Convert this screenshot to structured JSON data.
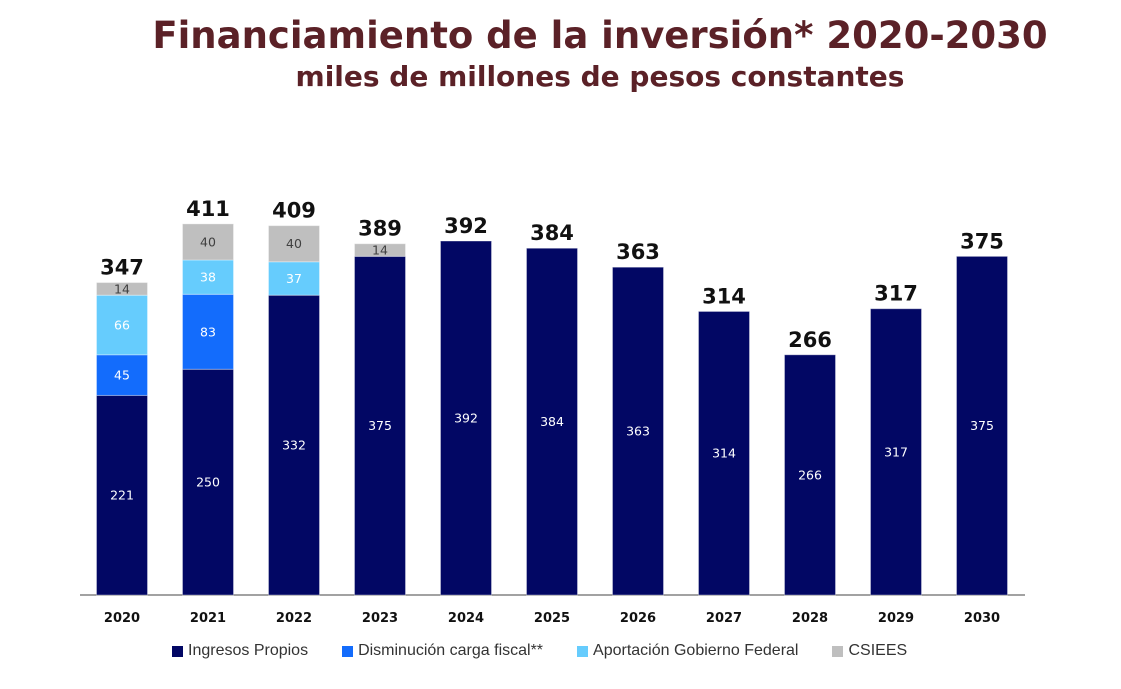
{
  "chart_data": {
    "type": "bar",
    "stacked": true,
    "title": "Financiamiento de la inversión* 2020-2030",
    "subtitle": "miles de millones de pesos constantes",
    "categories": [
      "2020",
      "2021",
      "2022",
      "2023",
      "2024",
      "2025",
      "2026",
      "2027",
      "2028",
      "2029",
      "2030"
    ],
    "series": [
      {
        "name": "Ingresos Propios",
        "color": "#020764",
        "values": [
          221,
          250,
          332,
          375,
          392,
          384,
          363,
          314,
          266,
          317,
          375
        ]
      },
      {
        "name": "Disminución carga fiscal**",
        "color": "#136cfc",
        "values": [
          45,
          83,
          0,
          0,
          0,
          0,
          0,
          0,
          0,
          0,
          0
        ]
      },
      {
        "name": "Aportación Gobierno Federal",
        "color": "#66ccfd",
        "values": [
          66,
          38,
          37,
          0,
          0,
          0,
          0,
          0,
          0,
          0,
          0
        ]
      },
      {
        "name": "CSIEES",
        "color": "#bfbfbf",
        "values": [
          14,
          40,
          40,
          14,
          0,
          0,
          0,
          0,
          0,
          0,
          0
        ]
      }
    ],
    "totals": [
      347,
      411,
      409,
      389,
      392,
      384,
      363,
      314,
      266,
      317,
      375
    ],
    "ylim": [
      0,
      400
    ],
    "grid": false,
    "legend": "bottom",
    "title_color": "#5b2127"
  }
}
